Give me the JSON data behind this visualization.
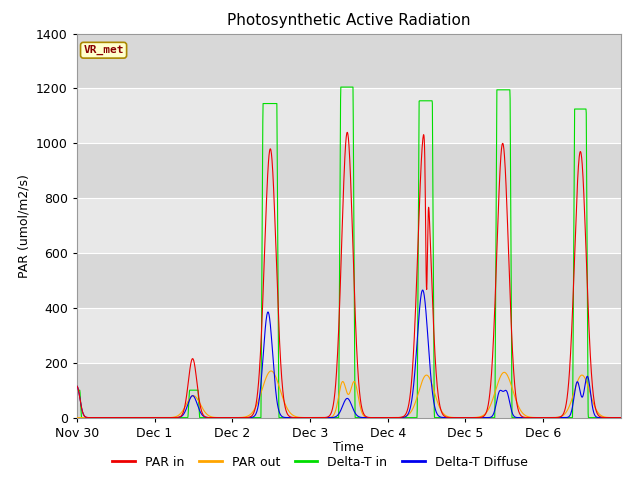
{
  "title": "Photosynthetic Active Radiation",
  "ylabel": "PAR (umol/m2/s)",
  "xlabel": "Time",
  "station_label": "VR_met",
  "ylim": [
    0,
    1400
  ],
  "yticks": [
    0,
    200,
    400,
    600,
    800,
    1000,
    1200,
    1400
  ],
  "xtick_labels": [
    "Nov 30",
    "Dec 1",
    "Dec 2",
    "Dec 3",
    "Dec 4",
    "Dec 5",
    "Dec 6"
  ],
  "xtick_positions": [
    0,
    1,
    2,
    3,
    4,
    5,
    6
  ],
  "xlim": [
    0,
    7
  ],
  "colors": {
    "PAR_in": "#ee0000",
    "PAR_out": "#ffa500",
    "DeltaT_in": "#00dd00",
    "DeltaT_diffuse": "#0000ee"
  },
  "band_colors": [
    "#d8d8d8",
    "#e8e8e8"
  ],
  "legend_entries": [
    "PAR in",
    "PAR out",
    "Delta-T in",
    "Delta-T Diffuse"
  ],
  "title_fontsize": 11,
  "label_fontsize": 9,
  "tick_fontsize": 9
}
